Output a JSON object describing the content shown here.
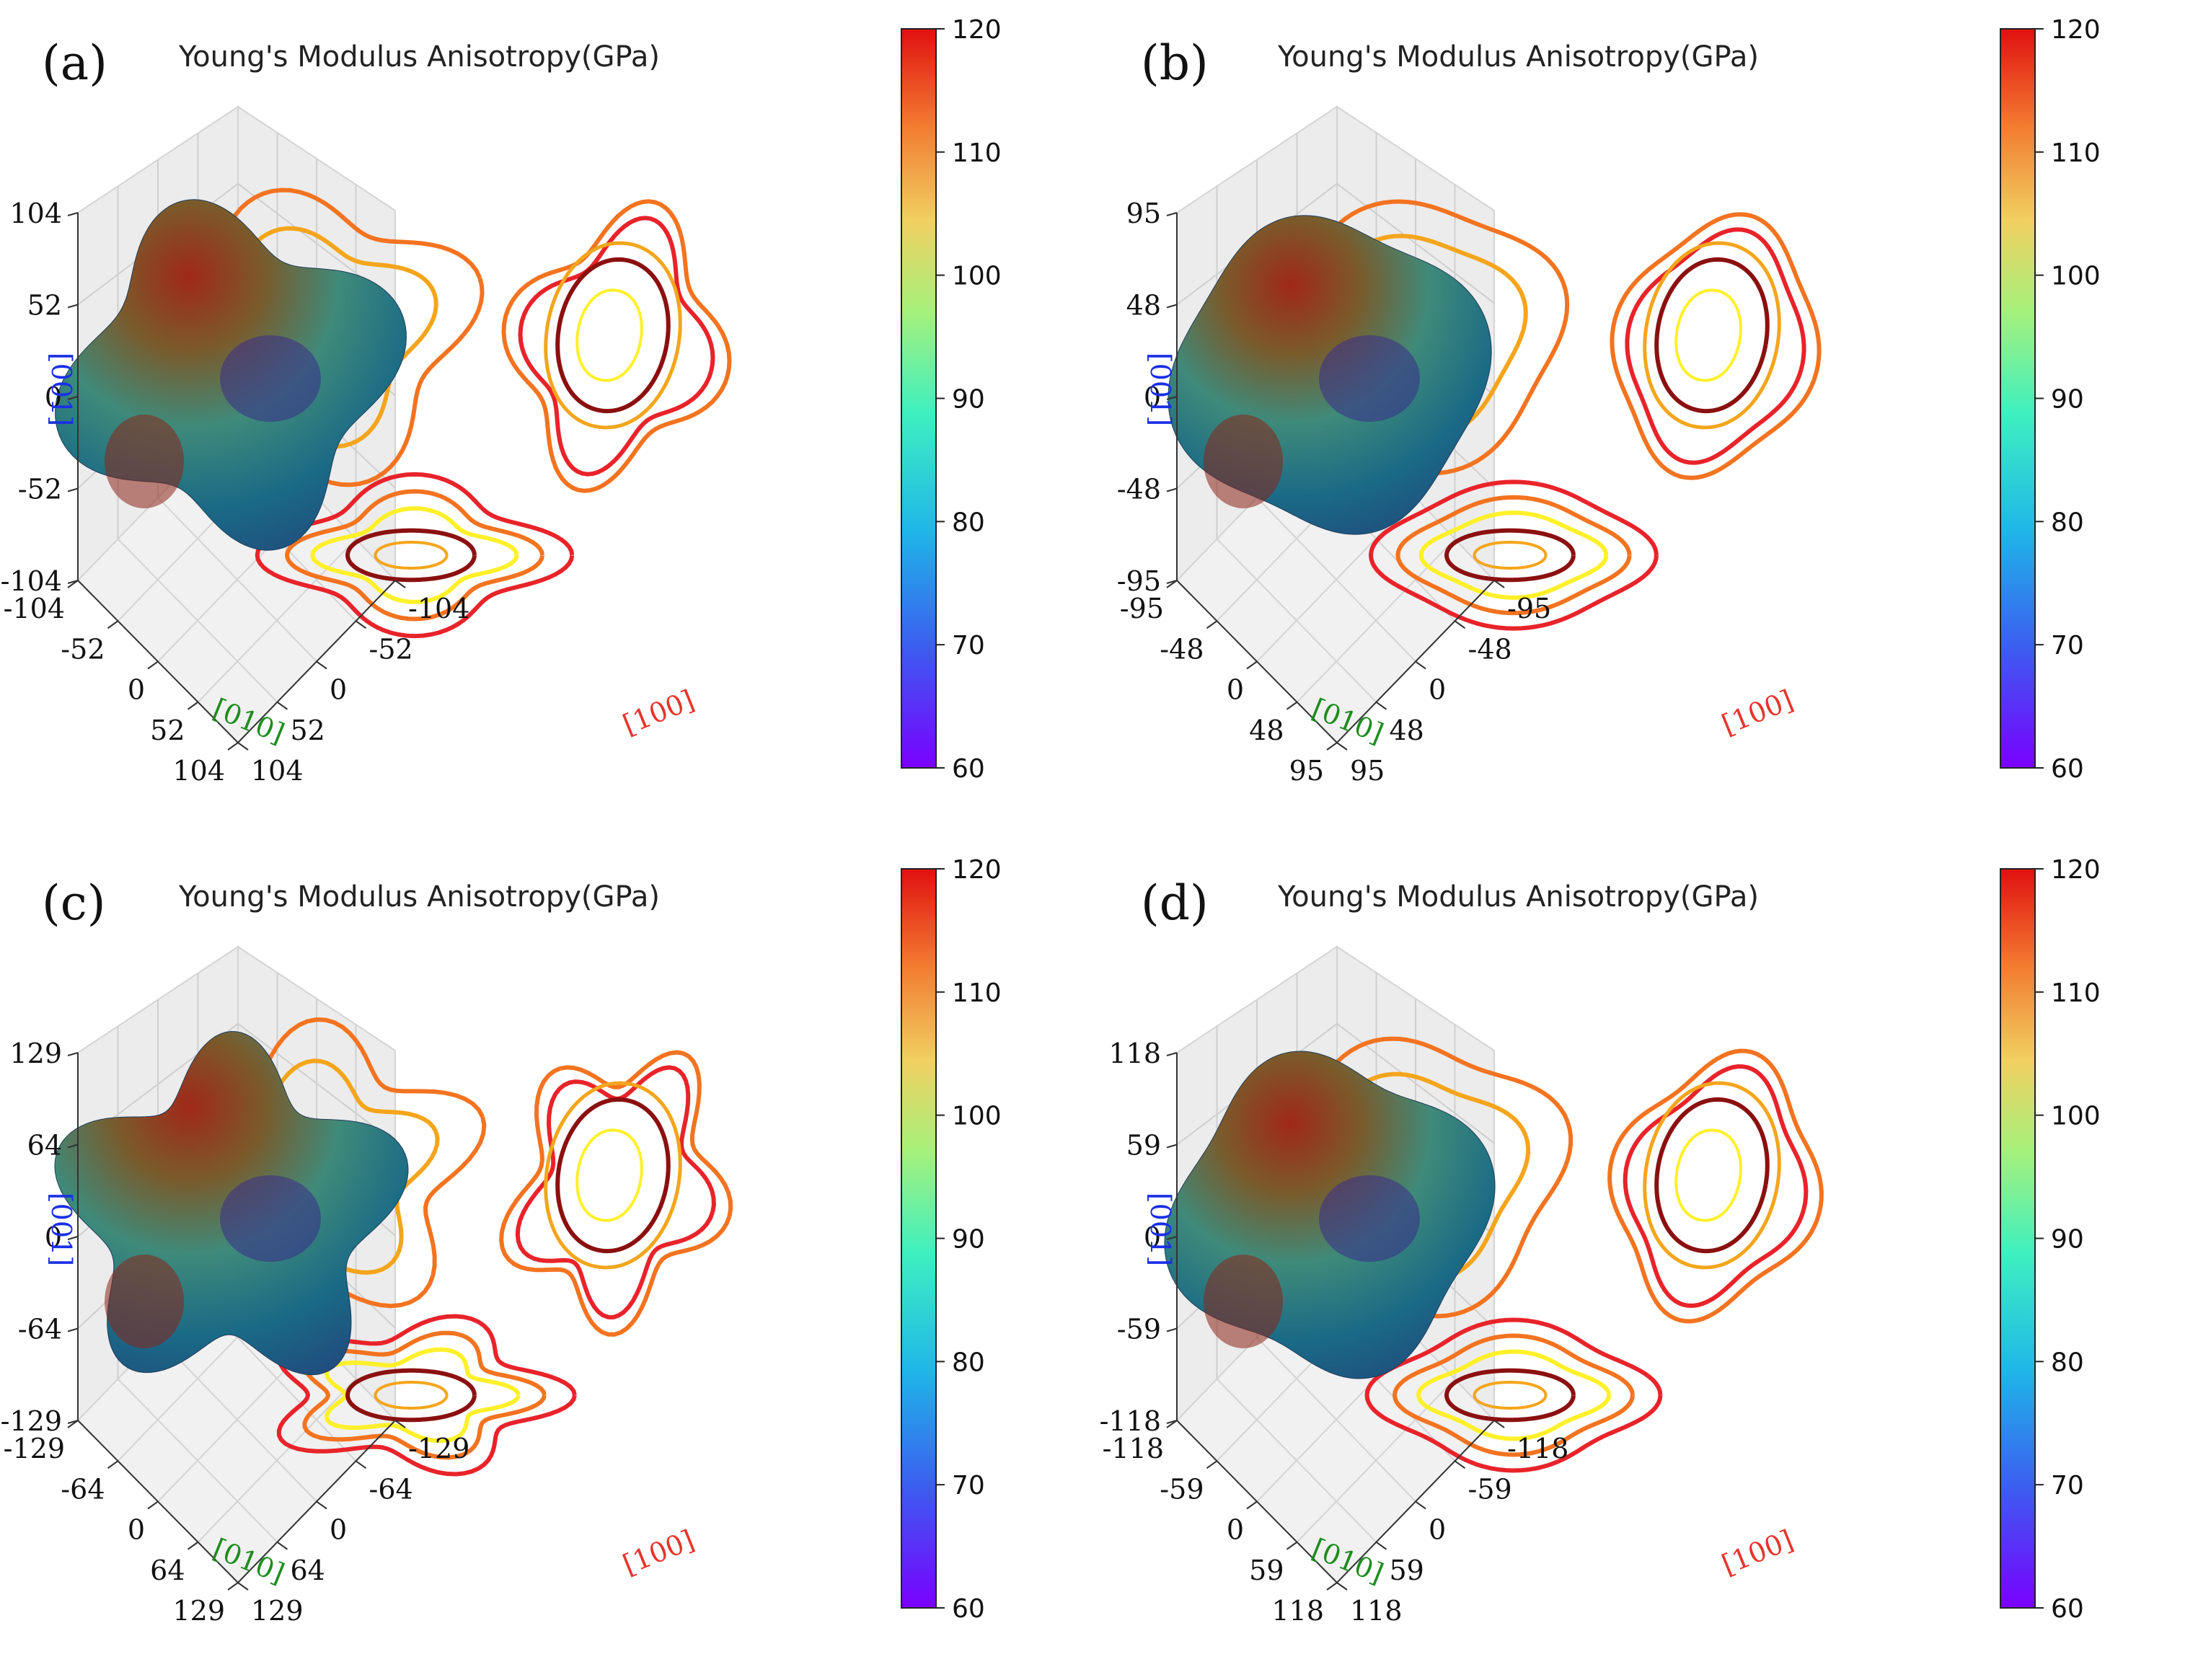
{
  "chart_data": [
    {
      "type": "surface3d",
      "panel_label": "(a)",
      "title": "Young's Modulus Anisotropy(GPa)",
      "x_axis_label": "[100]",
      "y_axis_label": "[010]",
      "z_axis_label": "[001]",
      "ticks": [
        "-104",
        "-52",
        "0",
        "52",
        "104"
      ],
      "axis_range": [
        -104,
        104
      ],
      "colorbar_ticks": [
        "60",
        "70",
        "80",
        "90",
        "100",
        "110",
        "120"
      ],
      "colorbar_range": [
        60,
        120
      ],
      "youngs_modulus_max": 120,
      "youngs_modulus_min": 60,
      "shape_lobes": 4,
      "shape_amplitude": 0.18
    },
    {
      "type": "surface3d",
      "panel_label": "(b)",
      "title": "Young's Modulus Anisotropy(GPa)",
      "x_axis_label": "[100]",
      "y_axis_label": "[010]",
      "z_axis_label": "[001]",
      "ticks": [
        "-95",
        "-48",
        "0",
        "48",
        "95"
      ],
      "axis_range": [
        -95,
        95
      ],
      "colorbar_ticks": [
        "60",
        "70",
        "80",
        "90",
        "100",
        "110",
        "120"
      ],
      "colorbar_range": [
        60,
        120
      ],
      "youngs_modulus_max": 120,
      "youngs_modulus_min": 60,
      "shape_lobes": 4,
      "shape_amplitude": 0.07
    },
    {
      "type": "surface3d",
      "panel_label": "(c)",
      "title": "Young's Modulus Anisotropy(GPa)",
      "x_axis_label": "[100]",
      "y_axis_label": "[010]",
      "z_axis_label": "[001]",
      "ticks": [
        "-129",
        "-64",
        "0",
        "64",
        "129"
      ],
      "axis_range": [
        -129,
        129
      ],
      "colorbar_ticks": [
        "60",
        "70",
        "80",
        "90",
        "100",
        "110",
        "120"
      ],
      "colorbar_range": [
        60,
        120
      ],
      "youngs_modulus_max": 120,
      "youngs_modulus_min": 60,
      "shape_lobes": 5,
      "shape_amplitude": 0.2
    },
    {
      "type": "surface3d",
      "panel_label": "(d)",
      "title": "Young's Modulus Anisotropy(GPa)",
      "x_axis_label": "[100]",
      "y_axis_label": "[010]",
      "z_axis_label": "[001]",
      "ticks": [
        "-118",
        "-59",
        "0",
        "59",
        "118"
      ],
      "axis_range": [
        -118,
        118
      ],
      "colorbar_ticks": [
        "60",
        "70",
        "80",
        "90",
        "100",
        "110",
        "120"
      ],
      "colorbar_range": [
        60,
        120
      ],
      "youngs_modulus_max": 120,
      "youngs_modulus_min": 60,
      "shape_lobes": 4,
      "shape_amplitude": 0.1
    }
  ],
  "colors": {
    "x_axis_label": "#e8332a",
    "y_axis_label": "#1e8c1e",
    "z_axis_label": "#1a2fe6",
    "contour_levels": [
      "#8b1010",
      "#e8232a",
      "#f37320",
      "#f4a51c",
      "#fff02a"
    ]
  }
}
